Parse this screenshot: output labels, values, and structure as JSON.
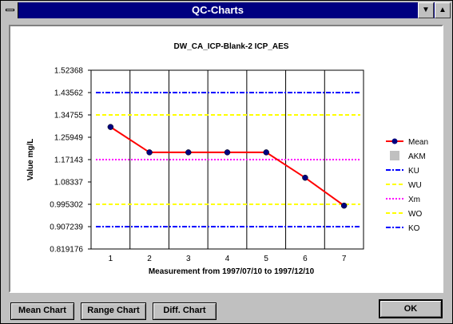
{
  "window": {
    "title": "QC-Charts",
    "minimize_glyph": "▼",
    "maximize_glyph": "▲"
  },
  "buttons": {
    "mean_chart": "Mean Chart",
    "range_chart": "Range Chart",
    "diff_chart": "Diff. Chart",
    "ok": "OK"
  },
  "chart_data": {
    "type": "line",
    "title": "DW_CA_ICP-Blank-2  ICP_AES",
    "xlabel": "Measurement from 1997/07/10 to 1997/12/10",
    "ylabel": "Value mg/L",
    "categories": [
      "1",
      "2",
      "3",
      "4",
      "5",
      "6",
      "7"
    ],
    "y_ticks": [
      "1.52368",
      "1.43562",
      "1.34755",
      "1.25949",
      "1.17143",
      "1.08337",
      "0.995302",
      "0.907239",
      "0.819176"
    ],
    "ylim": [
      0.819176,
      1.52368
    ],
    "grid": "vertical",
    "legend_position": "right",
    "series": [
      {
        "name": "Mean",
        "kind": "line-marker",
        "color": "#ff0000",
        "marker_color": "#000080",
        "values": [
          1.3,
          1.2,
          1.2,
          1.2,
          1.2,
          1.1,
          0.99
        ]
      },
      {
        "name": "AKM",
        "kind": "box",
        "color": "#c0c0c0",
        "values": []
      },
      {
        "name": "KU",
        "kind": "hline",
        "color": "#0000ff",
        "style": "dashdot",
        "value": 1.43562
      },
      {
        "name": "WU",
        "kind": "hline",
        "color": "#ffff00",
        "style": "dash",
        "value": 1.34755
      },
      {
        "name": "Xm",
        "kind": "hline",
        "color": "#ff00ff",
        "style": "dot",
        "value": 1.17143
      },
      {
        "name": "WO",
        "kind": "hline",
        "color": "#ffff00",
        "style": "dash",
        "value": 0.995302
      },
      {
        "name": "KO",
        "kind": "hline",
        "color": "#0000ff",
        "style": "dashdot",
        "value": 0.907239
      }
    ]
  }
}
